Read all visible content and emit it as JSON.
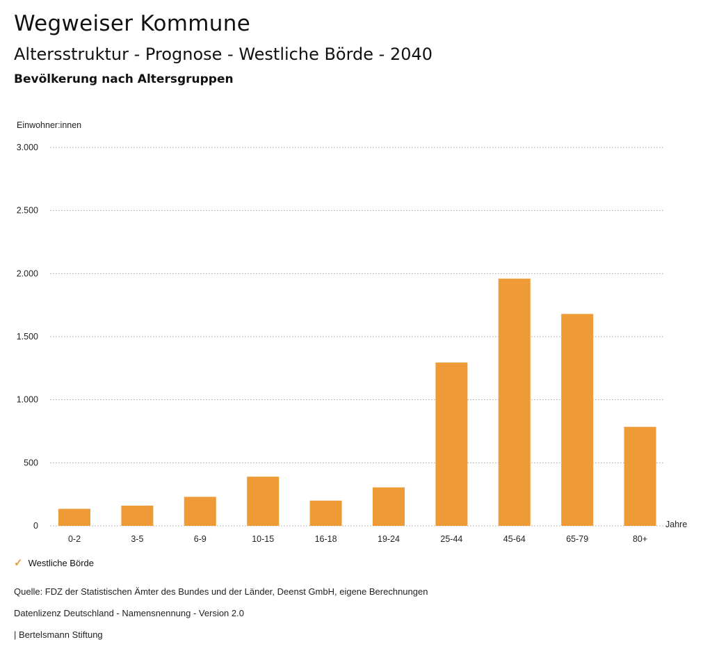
{
  "header": {
    "title": "Wegweiser Kommune",
    "subtitle": "Altersstruktur - Prognose - Westliche Börde - 2040",
    "subsubtitle": "Bevölkerung nach Altersgruppen"
  },
  "chart_data": {
    "type": "bar",
    "ylabel": "Einwohner:innen",
    "xlabel": "Jahre",
    "ylim": [
      0,
      3000
    ],
    "yticks": [
      0,
      500,
      1000,
      1500,
      2000,
      2500,
      3000
    ],
    "ytick_labels": [
      "0",
      "500",
      "1.000",
      "1.500",
      "2.000",
      "2.500",
      "3.000"
    ],
    "categories": [
      "0-2",
      "3-5",
      "6-9",
      "10-15",
      "16-18",
      "19-24",
      "25-44",
      "45-64",
      "65-79",
      "80+"
    ],
    "series": [
      {
        "name": "Westliche Börde",
        "color": "#ee9a37",
        "values": [
          135,
          160,
          230,
          390,
          200,
          305,
          1295,
          1960,
          1680,
          785
        ]
      }
    ],
    "grid": true,
    "legend_position": "bottom-left"
  },
  "legend": {
    "label": "Westliche Börde"
  },
  "footer": {
    "source": "Quelle: FDZ der Statistischen Ämter des Bundes und der Länder, Deenst GmbH, eigene Berechnungen",
    "license": "Datenlizenz Deutschland - Namensnennung - Version 2.0",
    "publisher": "| Bertelsmann Stiftung"
  }
}
